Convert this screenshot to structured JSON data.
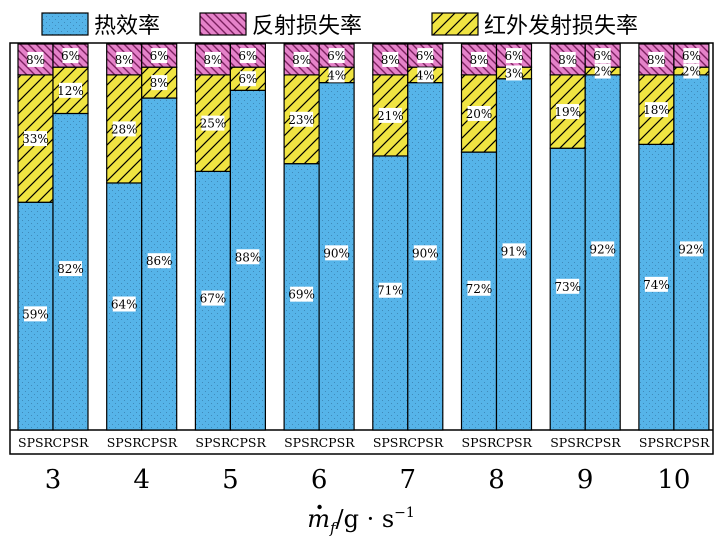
{
  "chart_data": {
    "type": "bar",
    "stacked": true,
    "normalized": true,
    "legend_position": "top",
    "categories": [
      "3",
      "4",
      "5",
      "6",
      "7",
      "8",
      "9",
      "10"
    ],
    "bar_names": [
      "SPSR",
      "CPSR"
    ],
    "series": [
      {
        "name": "热效率",
        "color": "#56b4e9",
        "pattern": "dots",
        "values": {
          "SPSR": [
            59,
            64,
            67,
            69,
            71,
            72,
            73,
            74
          ],
          "CPSR": [
            82,
            86,
            88,
            90,
            90,
            91,
            92,
            92
          ]
        }
      },
      {
        "name": "红外发射损失率",
        "color": "#f0e442",
        "pattern": "hatch",
        "values": {
          "SPSR": [
            33,
            28,
            25,
            23,
            21,
            20,
            19,
            18
          ],
          "CPSR": [
            12,
            8,
            6,
            4,
            4,
            3,
            2,
            2
          ]
        }
      },
      {
        "name": "反射损失率",
        "color": "#e582c9",
        "pattern": "backhatch",
        "values": {
          "SPSR": [
            8,
            8,
            8,
            8,
            8,
            8,
            8,
            8
          ],
          "CPSR": [
            6,
            6,
            6,
            6,
            6,
            6,
            6,
            6
          ]
        }
      }
    ],
    "legend_order": [
      "热效率",
      "反射损失率",
      "红外发射损失率"
    ],
    "value_suffix": "%",
    "xlabel_main": "m",
    "xlabel_sub": "f",
    "xlabel_rest": "/g · s",
    "xlabel_sup": "−1",
    "ylim": [
      0,
      100
    ],
    "grid": false
  }
}
